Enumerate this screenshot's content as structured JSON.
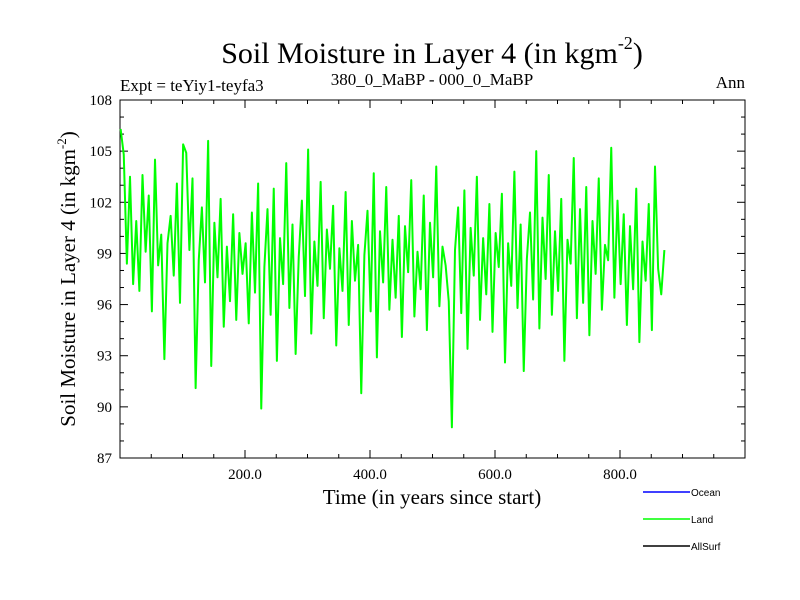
{
  "chart_data": {
    "type": "line",
    "title": "Soil Moisture in Layer 4 (in kgm",
    "title_sup": "-2",
    "title_close": ")",
    "subtitle_left": "Expt = teYiy1-teyfa3",
    "subtitle_center": "380_0_MaBP - 000_0_MaBP",
    "subtitle_right": "Ann",
    "xlabel": "Time (in years since start)",
    "ylabel": "Soil Moisture in Layer 4 (in kgm",
    "ylabel_sup": "-2",
    "ylabel_close": ")",
    "xlim": [
      0,
      1000
    ],
    "ylim": [
      87,
      108
    ],
    "x_ticks": [
      200,
      400,
      600,
      800
    ],
    "x_tick_labels": [
      "200.0",
      "400.0",
      "600.0",
      "800.0"
    ],
    "y_ticks": [
      87,
      90,
      93,
      96,
      99,
      102,
      105,
      108
    ],
    "y_tick_labels": [
      "87",
      "90",
      "93",
      "96",
      "99",
      "102",
      "105",
      "108"
    ],
    "legend_position": "bottom-right",
    "series": [
      {
        "name": "Ocean",
        "color": "#0000ff",
        "values": []
      },
      {
        "name": "Land",
        "color": "#00ff00",
        "x_start": 1,
        "x_step": 5,
        "values": [
          106.3,
          104.8,
          98.4,
          103.5,
          97.2,
          100.9,
          96.8,
          103.6,
          99.1,
          102.4,
          95.6,
          104.5,
          98.3,
          100.1,
          92.8,
          99.6,
          101.2,
          97.7,
          103.1,
          96.1,
          105.4,
          104.9,
          99.2,
          103.4,
          91.1,
          98.6,
          101.7,
          97.3,
          105.6,
          92.4,
          100.8,
          97.6,
          102.2,
          94.7,
          99.4,
          96.2,
          101.3,
          95.1,
          100.2,
          97.8,
          99.6,
          94.9,
          101.4,
          96.7,
          103.1,
          89.9,
          98.2,
          101.6,
          95.4,
          102.8,
          92.7,
          99.9,
          97.2,
          104.3,
          95.8,
          100.7,
          93.1,
          98.8,
          102.1,
          96.5,
          105.1,
          94.3,
          99.7,
          97.1,
          103.2,
          95.2,
          100.4,
          98.1,
          101.8,
          93.6,
          99.3,
          96.8,
          102.6,
          94.8,
          100.9,
          97.4,
          99.5,
          90.8,
          98.9,
          101.5,
          95.6,
          103.7,
          92.9,
          100.3,
          97.3,
          102.9,
          95.7,
          99.8,
          96.4,
          101.2,
          94.1,
          100.6,
          97.9,
          103.3,
          95.3,
          99.1,
          96.9,
          102.4,
          94.5,
          100.8,
          97.6,
          104.1,
          95.9,
          99.4,
          98.3,
          96.2,
          88.8,
          99.2,
          101.7,
          95.5,
          102.7,
          93.4,
          100.5,
          97.7,
          103.5,
          95.1,
          99.9,
          96.6,
          101.9,
          94.4,
          100.2,
          98.2,
          102.5,
          92.6,
          99.6,
          97.1,
          103.8,
          95.8,
          100.7,
          92.1,
          98.7,
          101.4,
          96.3,
          105.0,
          94.6,
          101.1,
          97.5,
          103.6,
          95.4,
          100.3,
          96.8,
          102.2,
          92.7,
          99.8,
          98.4,
          104.6,
          95.2,
          101.6,
          96.1,
          102.9,
          94.2,
          100.9,
          97.8,
          103.4,
          95.7,
          99.5,
          98.6,
          105.2,
          96.4,
          102.1,
          97.2,
          101.3,
          94.8,
          100.6,
          96.9,
          102.8,
          93.8,
          99.7,
          97.4,
          101.9,
          94.5,
          104.1,
          98.1,
          96.6,
          99.2
        ]
      },
      {
        "name": "AllSurf",
        "color": "#000000",
        "values": []
      }
    ]
  }
}
